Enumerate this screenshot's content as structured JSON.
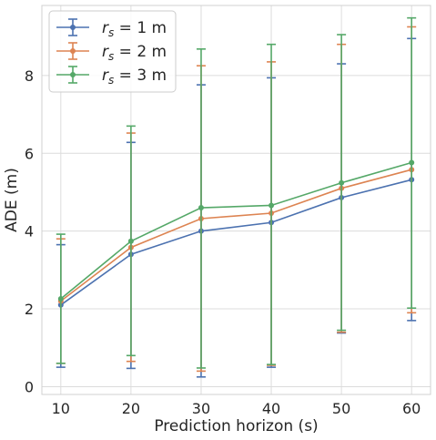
{
  "chart_data": {
    "type": "line",
    "xlabel": "Prediction horizon (s)",
    "ylabel": "ADE (m)",
    "x": [
      10,
      20,
      30,
      40,
      50,
      60
    ],
    "xticks": [
      "10",
      "20",
      "30",
      "40",
      "50",
      "60"
    ],
    "yticks": [
      "0",
      "2",
      "4",
      "6",
      "8"
    ],
    "xlim": [
      7.3,
      62.7
    ],
    "ylim": [
      -0.2,
      9.8
    ],
    "grid": true,
    "legend_position": "top-left",
    "series": [
      {
        "name_prefix": "r",
        "name_sub": "s",
        "name_suffix": " = 1 m",
        "color": "#4c72b0",
        "values": [
          2.1,
          3.4,
          4.0,
          4.22,
          4.86,
          5.32
        ],
        "err_low": [
          0.5,
          0.47,
          0.25,
          0.5,
          1.38,
          1.7
        ],
        "err_high": [
          3.65,
          6.28,
          7.76,
          7.94,
          8.3,
          8.95
        ]
      },
      {
        "name_prefix": "r",
        "name_sub": "s",
        "name_suffix": " = 2 m",
        "color": "#dd8452",
        "values": [
          2.2,
          3.58,
          4.32,
          4.46,
          5.1,
          5.58
        ],
        "err_low": [
          0.6,
          0.65,
          0.4,
          0.55,
          1.4,
          1.9
        ],
        "err_high": [
          3.8,
          6.52,
          8.25,
          8.35,
          8.8,
          9.25
        ]
      },
      {
        "name_prefix": "r",
        "name_sub": "s",
        "name_suffix": " = 3 m",
        "color": "#55a868",
        "values": [
          2.26,
          3.74,
          4.6,
          4.66,
          5.24,
          5.76
        ],
        "err_low": [
          0.6,
          0.8,
          0.48,
          0.57,
          1.45,
          2.02
        ],
        "err_high": [
          3.92,
          6.7,
          8.68,
          8.8,
          9.05,
          9.48
        ]
      }
    ]
  }
}
